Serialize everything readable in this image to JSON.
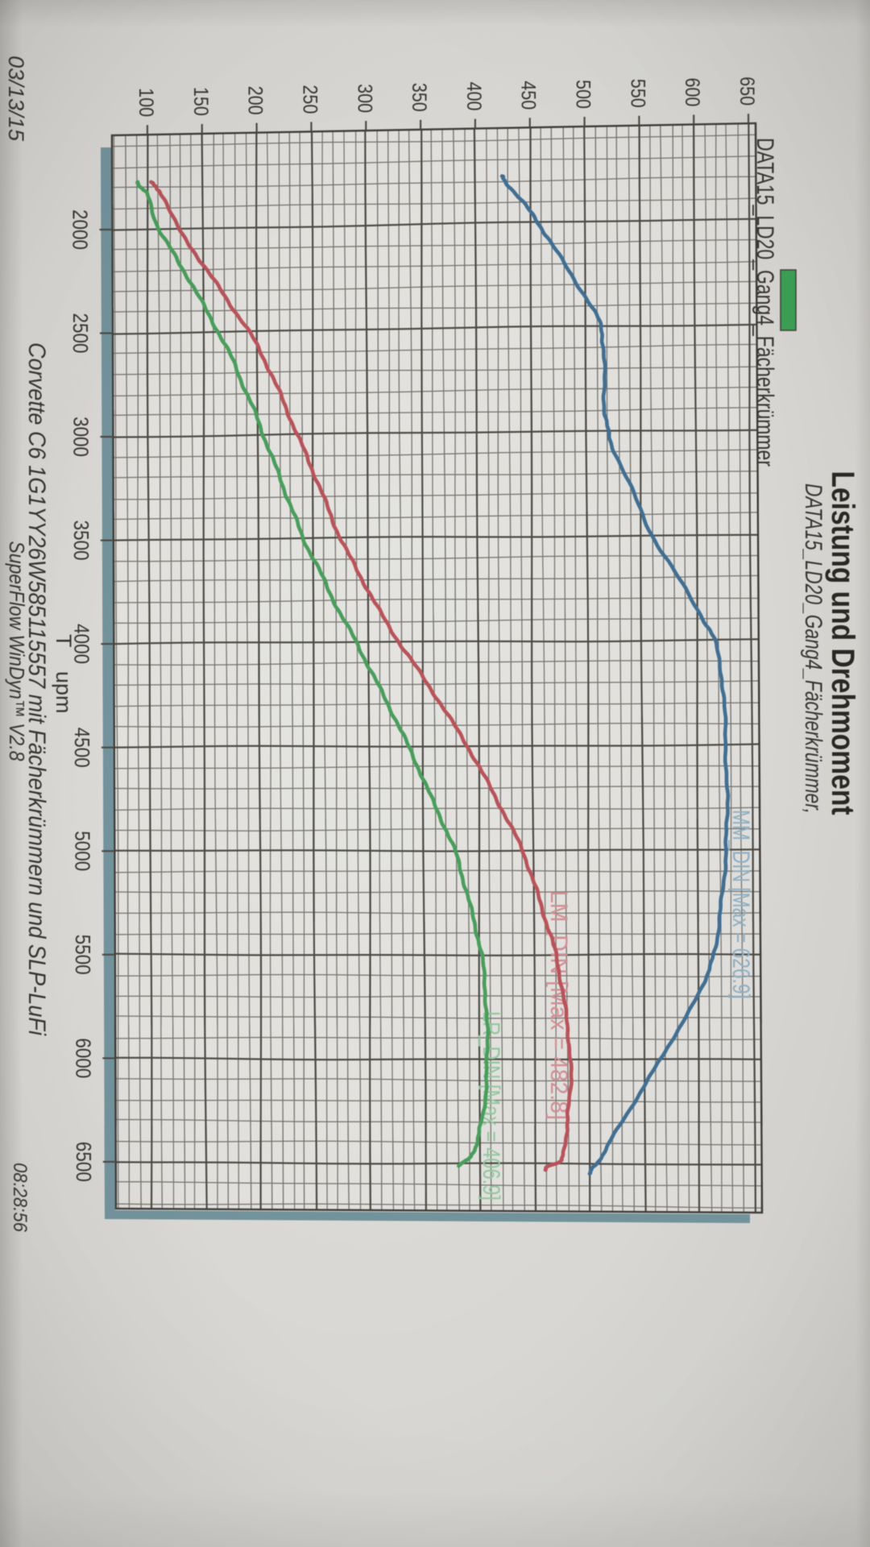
{
  "header": {
    "title": "Leistung und Drehmoment",
    "subtitle": "DATA15_LD20_Gang4_Fächerkrümmer,"
  },
  "legend": {
    "label": "DATA15_LD20_Gang4_Fächerkrümmer",
    "swatch_color": "#35a14f"
  },
  "footer": {
    "line1": "Corvette C6 1G1YY26W585115557 mit Fächerkrümmern und SLP-LuFi",
    "line2": "SuperFlow WinDyn™ V2.8",
    "date": "03/13/15",
    "time": "08:28:56"
  },
  "colors": {
    "paper_center": "#e8e6e2",
    "paper_edge": "#d0ceca",
    "plot_fill": "rgba(255,255,255,0.22)",
    "grid_minor": "#76746e",
    "grid_major": "#4a4842",
    "plot_border": "#3c3a36",
    "shadow": "#7295a0",
    "text": "#343230",
    "title_text": "#26241f"
  },
  "chart_data": {
    "type": "line",
    "title": "Leistung und Drehmoment",
    "xlabel": "T    upm",
    "ylabel": "",
    "xlim": [
      1500,
      6700
    ],
    "ylim": [
      70,
      660
    ],
    "x_ticks": [
      2000,
      2500,
      3000,
      3500,
      4000,
      4500,
      5000,
      5500,
      6000,
      6500
    ],
    "y_ticks": [
      100,
      150,
      200,
      250,
      300,
      350,
      400,
      450,
      500,
      550,
      600,
      650
    ],
    "x_minor_step": 100,
    "y_minor_step": 10,
    "grid": "major+minor",
    "legend_position": "top-left",
    "series": [
      {
        "name": "LR_DIN",
        "label": "LR_DIN [Max = 406.9]",
        "max": 406.9,
        "color": "#44a159",
        "label_color": "#93cda1",
        "points": [
          [
            1772,
            91
          ],
          [
            1800,
            94
          ],
          [
            1850,
            101
          ],
          [
            2000,
            110
          ],
          [
            2125,
            124
          ],
          [
            2250,
            138
          ],
          [
            2375,
            151
          ],
          [
            2500,
            164
          ],
          [
            2625,
            176
          ],
          [
            2750,
            186
          ],
          [
            2875,
            196
          ],
          [
            3000,
            205
          ],
          [
            3125,
            214
          ],
          [
            3250,
            223
          ],
          [
            3375,
            232
          ],
          [
            3500,
            241
          ],
          [
            3625,
            253
          ],
          [
            3750,
            264
          ],
          [
            3875,
            276
          ],
          [
            4000,
            289
          ],
          [
            4125,
            301
          ],
          [
            4250,
            313
          ],
          [
            4375,
            325
          ],
          [
            4500,
            336
          ],
          [
            4625,
            347
          ],
          [
            4750,
            357
          ],
          [
            4875,
            368
          ],
          [
            5000,
            378
          ],
          [
            5125,
            385
          ],
          [
            5250,
            391
          ],
          [
            5375,
            397
          ],
          [
            5500,
            402
          ],
          [
            5650,
            405
          ],
          [
            5800,
            406.4
          ],
          [
            5950,
            406.9
          ],
          [
            6100,
            406
          ],
          [
            6250,
            403
          ],
          [
            6350,
            399
          ],
          [
            6430,
            395
          ],
          [
            6470,
            391
          ],
          [
            6490,
            385
          ],
          [
            6510,
            381
          ]
        ]
      },
      {
        "name": "LM_DIN",
        "label": "LM_DIN [Max = 482.8]",
        "max": 482.8,
        "color": "#c05058",
        "label_color": "#d98f96",
        "points": [
          [
            1772,
            104
          ],
          [
            1800,
            107
          ],
          [
            1850,
            115
          ],
          [
            2000,
            128
          ],
          [
            2125,
            144
          ],
          [
            2250,
            160
          ],
          [
            2375,
            176
          ],
          [
            2500,
            192
          ],
          [
            2625,
            205
          ],
          [
            2750,
            216
          ],
          [
            2875,
            226
          ],
          [
            3000,
            236
          ],
          [
            3125,
            246
          ],
          [
            3250,
            256
          ],
          [
            3375,
            265
          ],
          [
            3500,
            275
          ],
          [
            3625,
            287
          ],
          [
            3750,
            300
          ],
          [
            3875,
            313
          ],
          [
            4000,
            328
          ],
          [
            4125,
            344
          ],
          [
            4250,
            360
          ],
          [
            4375,
            375
          ],
          [
            4500,
            390
          ],
          [
            4625,
            403
          ],
          [
            4750,
            416
          ],
          [
            4875,
            428
          ],
          [
            5000,
            440
          ],
          [
            5125,
            448
          ],
          [
            5250,
            456
          ],
          [
            5375,
            463
          ],
          [
            5500,
            470
          ],
          [
            5650,
            475
          ],
          [
            5800,
            479
          ],
          [
            5950,
            482
          ],
          [
            6100,
            482.8
          ],
          [
            6250,
            480.5
          ],
          [
            6350,
            478.5
          ],
          [
            6450,
            476
          ],
          [
            6490,
            472
          ],
          [
            6510,
            462
          ],
          [
            6530,
            459
          ]
        ]
      },
      {
        "name": "MM_DIN",
        "label": "MM_DIN [Max = 626.9]",
        "max": 626.9,
        "color": "#3c6e95",
        "label_color": "#8fb3c9",
        "points": [
          [
            1775,
            424
          ],
          [
            1805,
            428
          ],
          [
            1900,
            443
          ],
          [
            2000,
            457
          ],
          [
            2100,
            469
          ],
          [
            2250,
            487
          ],
          [
            2400,
            505
          ],
          [
            2500,
            514
          ],
          [
            2600,
            516
          ],
          [
            2750,
            517
          ],
          [
            2900,
            517
          ],
          [
            3000,
            520
          ],
          [
            3100,
            526
          ],
          [
            3300,
            543
          ],
          [
            3500,
            560
          ],
          [
            3700,
            583
          ],
          [
            3900,
            606
          ],
          [
            4000,
            616
          ],
          [
            4150,
            622
          ],
          [
            4300,
            624.5
          ],
          [
            4500,
            626
          ],
          [
            4700,
            626.8
          ],
          [
            4850,
            626.9
          ],
          [
            5000,
            625.5
          ],
          [
            5150,
            623.5
          ],
          [
            5300,
            620
          ],
          [
            5450,
            616
          ],
          [
            5550,
            611
          ],
          [
            5650,
            603
          ],
          [
            5800,
            588
          ],
          [
            5950,
            570
          ],
          [
            6064,
            557
          ],
          [
            6200,
            541
          ],
          [
            6350,
            523
          ],
          [
            6450,
            512
          ],
          [
            6500,
            506
          ],
          [
            6520,
            501
          ],
          [
            6545,
            500
          ]
        ]
      }
    ]
  }
}
